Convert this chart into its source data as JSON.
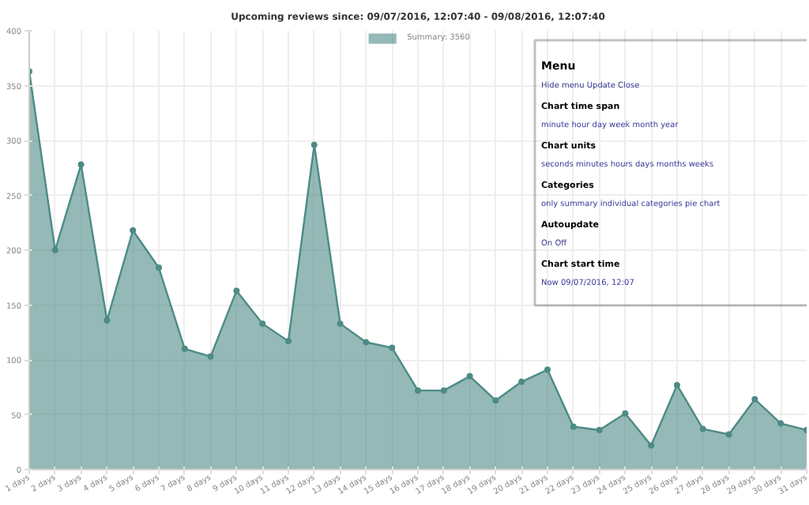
{
  "chart_data": {
    "type": "area",
    "title": "Upcoming reviews since: 09/07/2016, 12:07:40 - 09/08/2016, 12:07:40",
    "categories": [
      "1 days",
      "2 days",
      "3 days",
      "4 days",
      "5 days",
      "6 days",
      "7 days",
      "8 days",
      "9 days",
      "10 days",
      "11 days",
      "12 days",
      "13 days",
      "14 days",
      "15 days",
      "16 days",
      "17 days",
      "18 days",
      "19 days",
      "20 days",
      "21 days",
      "22 days",
      "23 days",
      "24 days",
      "25 days",
      "26 days",
      "27 days",
      "28 days",
      "29 days",
      "30 days",
      "31 days"
    ],
    "series": [
      {
        "name": "Summary: 3560",
        "color": "#4d8b86",
        "values": [
          363,
          200,
          278,
          136,
          218,
          184,
          110,
          103,
          163,
          133,
          117,
          296,
          133,
          116,
          111,
          72,
          72,
          85,
          63,
          80,
          91,
          39,
          36,
          51,
          22,
          77,
          37,
          32,
          64,
          42,
          36
        ]
      }
    ],
    "ylim": [
      0,
      400
    ],
    "yticks": [
      0,
      50,
      100,
      150,
      200,
      250,
      300,
      350,
      400
    ],
    "grid": true,
    "legend": "top",
    "marker": "circle",
    "annotations": [
      "Menu",
      "Hide menu   Update   Close",
      "Chart time span",
      "minute   hour   day   week   month   year",
      "Chart units",
      "seconds   minutes   hours   days   months   weeks",
      "Categories",
      "only summary   individual categories   pie chart",
      "Autoupdate",
      "On   Off",
      "Chart start time",
      "Now   09/07/2016, 12:07"
    ]
  }
}
